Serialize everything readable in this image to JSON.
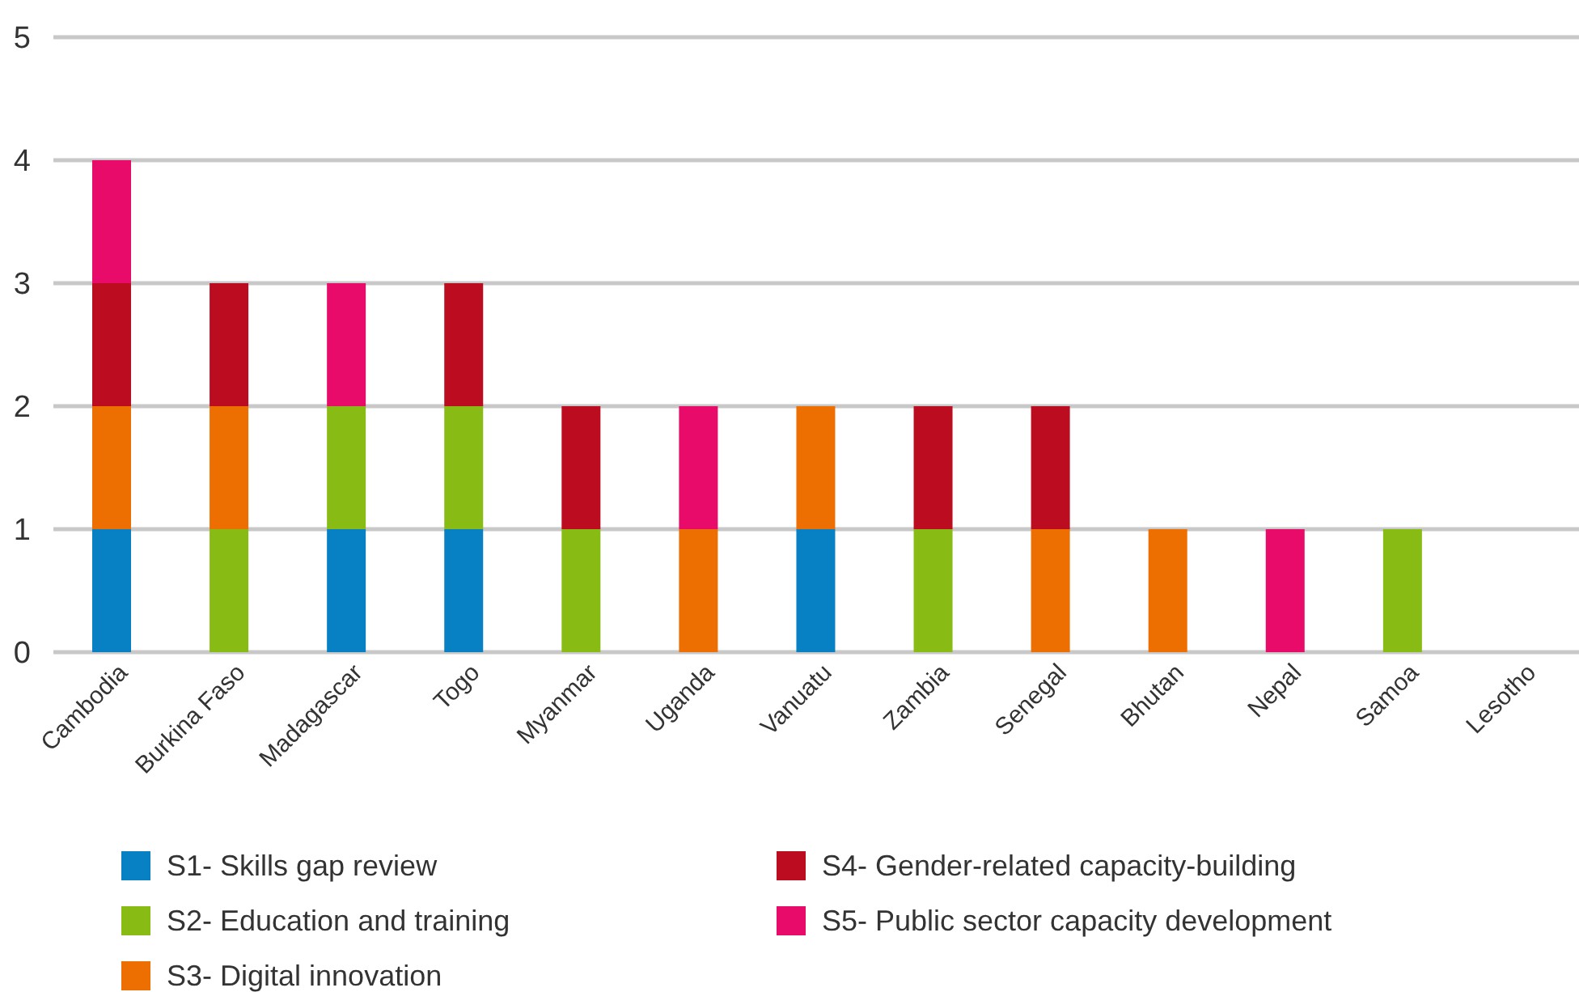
{
  "chart_data": {
    "type": "bar",
    "stacked": true,
    "categories": [
      "Cambodia",
      "Burkina Faso",
      "Madagascar",
      "Togo",
      "Myanmar",
      "Uganda",
      "Vanuatu",
      "Zambia",
      "Senegal",
      "Bhutan",
      "Nepal",
      "Samoa",
      "Lesotho"
    ],
    "series": [
      {
        "name": "S1- Skills gap review",
        "color": "#0781c3",
        "values": [
          1,
          0,
          1,
          1,
          0,
          0,
          1,
          0,
          0,
          0,
          0,
          0,
          0
        ]
      },
      {
        "name": "S2- Education and training",
        "color": "#88bb14",
        "values": [
          0,
          1,
          1,
          1,
          1,
          0,
          0,
          1,
          0,
          0,
          0,
          1,
          0
        ]
      },
      {
        "name": "S3- Digital innovation",
        "color": "#ed6f02",
        "values": [
          1,
          1,
          0,
          0,
          0,
          1,
          1,
          0,
          1,
          1,
          0,
          0,
          0
        ]
      },
      {
        "name": "S4- Gender-related capacity-building",
        "color": "#bc0c20",
        "values": [
          1,
          1,
          0,
          1,
          1,
          0,
          0,
          1,
          1,
          0,
          0,
          0,
          0
        ]
      },
      {
        "name": "S5- Public sector capacity development",
        "color": "#e80b6a",
        "values": [
          1,
          0,
          1,
          0,
          0,
          1,
          0,
          0,
          0,
          0,
          1,
          0,
          0
        ]
      }
    ],
    "ylim": [
      0,
      5
    ],
    "yticks": [
      0,
      1,
      2,
      3,
      4,
      5
    ],
    "grid": "y",
    "legend": "bottom"
  }
}
